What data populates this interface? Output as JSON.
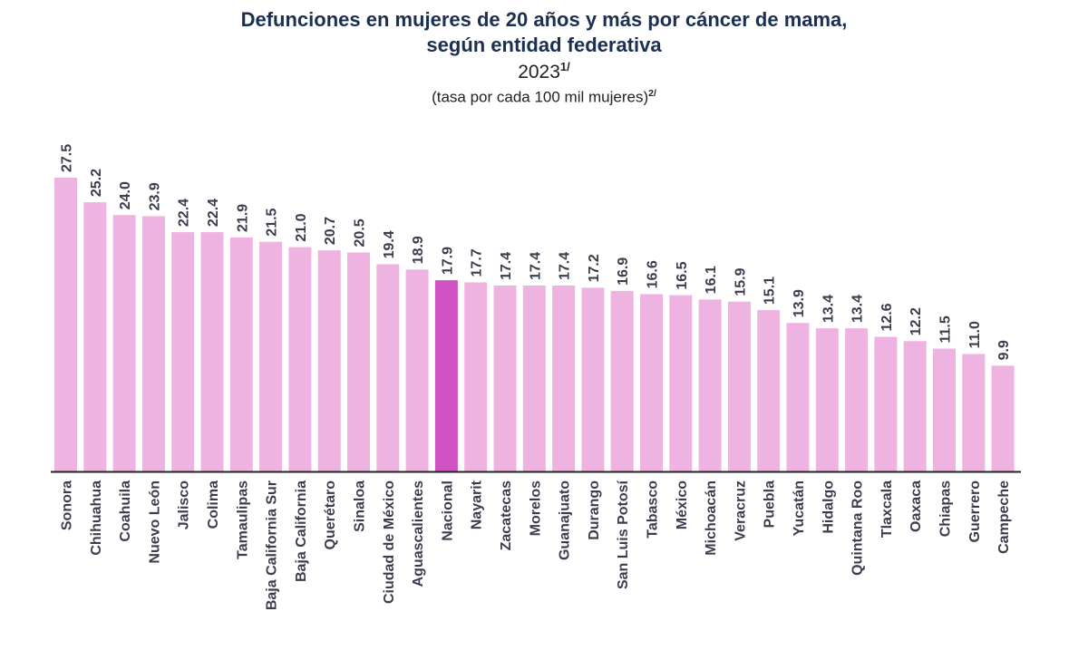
{
  "title_line1": "Defunciones en mujeres de 20 años y más por cáncer de mama,",
  "title_line2": "según entidad federativa",
  "year": "2023",
  "year_note": "1/",
  "unit": "(tasa por cada 100 mil mujeres)",
  "unit_note": "2/",
  "colors": {
    "bar": "#efb3e2",
    "highlight": "#d152c2",
    "text": "#3c3c4e",
    "title": "#1b2f52",
    "axis": "#222222"
  },
  "chart_data": {
    "type": "bar",
    "title": "Defunciones en mujeres de 20 años y más por cáncer de mama, según entidad federativa 2023",
    "subtitle": "(tasa por cada 100 mil mujeres)",
    "xlabel": "",
    "ylabel": "",
    "ylim": [
      0,
      27.5
    ],
    "grid": false,
    "highlight": "Nacional",
    "categories": [
      "Sonora",
      "Chihuahua",
      "Coahuila",
      "Nuevo León",
      "Jalisco",
      "Colima",
      "Tamaulipas",
      "Baja California Sur",
      "Baja California",
      "Querétaro",
      "Sinaloa",
      "Ciudad de México",
      "Aguascalientes",
      "Nacional",
      "Nayarit",
      "Zacatecas",
      "Morelos",
      "Guanajuato",
      "Durango",
      "San Luis Potosí",
      "Tabasco",
      "México",
      "Michoacán",
      "Veracruz",
      "Puebla",
      "Yucatán",
      "Hidalgo",
      "Quintana Roo",
      "Tlaxcala",
      "Oaxaca",
      "Chiapas",
      "Guerrero",
      "Campeche"
    ],
    "values": [
      27.5,
      25.2,
      24.0,
      23.9,
      22.4,
      22.4,
      21.9,
      21.5,
      21.0,
      20.7,
      20.5,
      19.4,
      18.9,
      17.9,
      17.7,
      17.4,
      17.4,
      17.4,
      17.2,
      16.9,
      16.6,
      16.5,
      16.1,
      15.9,
      15.1,
      13.9,
      13.4,
      13.4,
      12.6,
      12.2,
      11.5,
      11.0,
      9.9
    ]
  }
}
